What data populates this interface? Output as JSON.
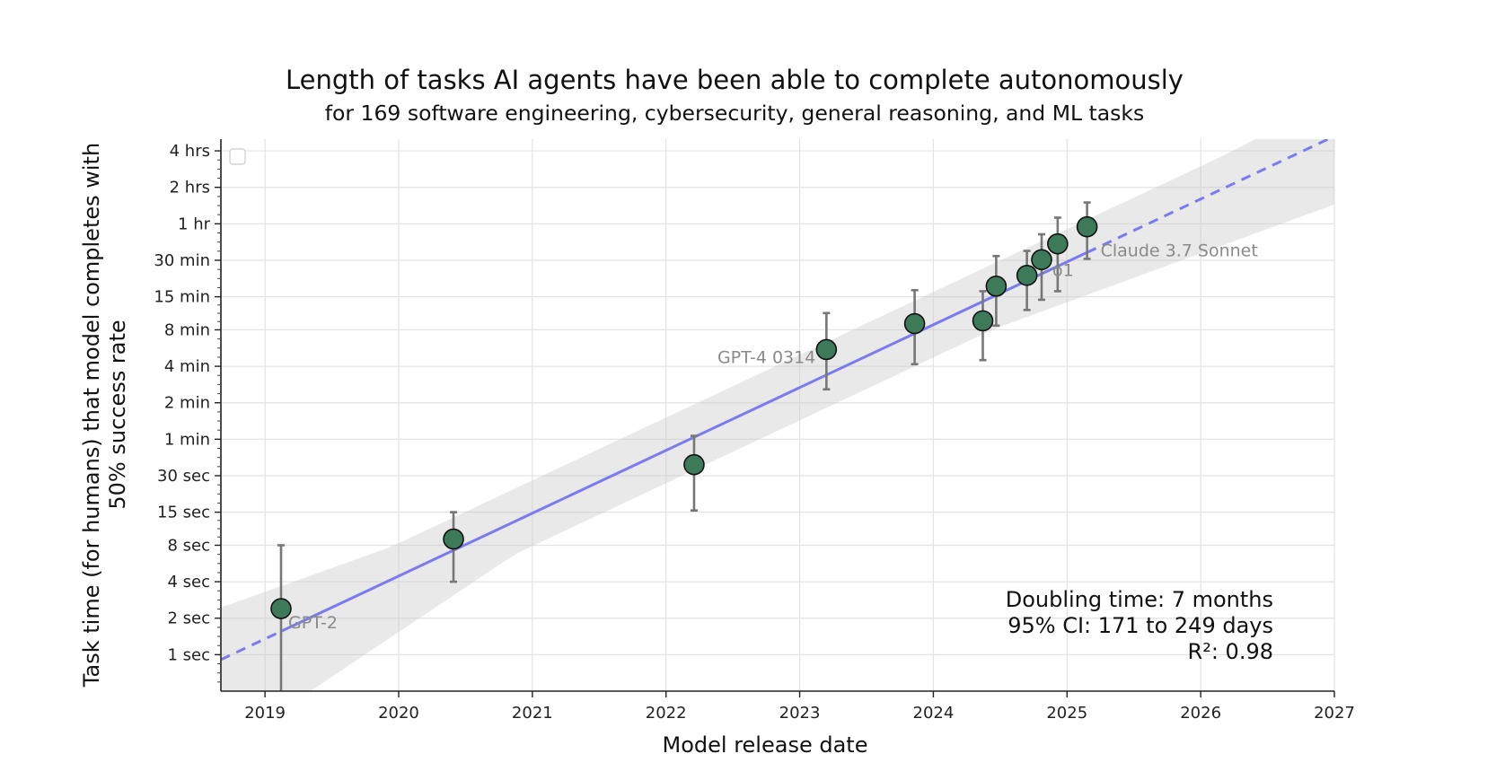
{
  "chart_data": {
    "type": "scatter",
    "title": "Length of tasks AI agents have been able to complete autonomously",
    "subtitle": "for 169 software engineering, cybersecurity, general reasoning, and ML tasks",
    "xlabel": "Model release date",
    "ylabel_line1": "Task time (for humans) that model completes with",
    "ylabel_line2": "50% success rate",
    "xlim": [
      2018.67,
      2027.0
    ],
    "ylim_seconds": [
      0.5,
      18000
    ],
    "y_scale": "log",
    "grid": true,
    "x_ticks": [
      {
        "value": 2019,
        "label": "2019"
      },
      {
        "value": 2020,
        "label": "2020"
      },
      {
        "value": 2021,
        "label": "2021"
      },
      {
        "value": 2022,
        "label": "2022"
      },
      {
        "value": 2023,
        "label": "2023"
      },
      {
        "value": 2024,
        "label": "2024"
      },
      {
        "value": 2025,
        "label": "2025"
      },
      {
        "value": 2026,
        "label": "2026"
      },
      {
        "value": 2027,
        "label": "2027"
      }
    ],
    "y_ticks": [
      {
        "seconds": 1,
        "label": "1 sec"
      },
      {
        "seconds": 2,
        "label": "2 sec"
      },
      {
        "seconds": 4,
        "label": "4 sec"
      },
      {
        "seconds": 8,
        "label": "8 sec"
      },
      {
        "seconds": 15,
        "label": "15 sec"
      },
      {
        "seconds": 30,
        "label": "30 sec"
      },
      {
        "seconds": 60,
        "label": "1 min"
      },
      {
        "seconds": 120,
        "label": "2 min"
      },
      {
        "seconds": 240,
        "label": "4 min"
      },
      {
        "seconds": 480,
        "label": "8 min"
      },
      {
        "seconds": 900,
        "label": "15 min"
      },
      {
        "seconds": 1800,
        "label": "30 min"
      },
      {
        "seconds": 3600,
        "label": "1 hr"
      },
      {
        "seconds": 7200,
        "label": "2 hrs"
      },
      {
        "seconds": 14400,
        "label": "4 hrs"
      }
    ],
    "points": [
      {
        "x": 2019.12,
        "y": 2.4,
        "err_low": 0.5,
        "err_high": 8,
        "label": "GPT-2"
      },
      {
        "x": 2020.41,
        "y": 9,
        "err_low": 4,
        "err_high": 15,
        "label": ""
      },
      {
        "x": 2022.21,
        "y": 37,
        "err_low": 15.5,
        "err_high": 64,
        "label": ""
      },
      {
        "x": 2023.2,
        "y": 330,
        "err_low": 155,
        "err_high": 660,
        "label": "GPT-4 0314"
      },
      {
        "x": 2023.86,
        "y": 540,
        "err_low": 250,
        "err_high": 1020,
        "label": ""
      },
      {
        "x": 2024.37,
        "y": 570,
        "err_low": 270,
        "err_high": 1000,
        "label": ""
      },
      {
        "x": 2024.47,
        "y": 1100,
        "err_low": 520,
        "err_high": 1950,
        "label": ""
      },
      {
        "x": 2024.7,
        "y": 1350,
        "err_low": 700,
        "err_high": 2150,
        "label": ""
      },
      {
        "x": 2024.81,
        "y": 1820,
        "err_low": 850,
        "err_high": 2950,
        "label": "o1"
      },
      {
        "x": 2024.93,
        "y": 2460,
        "err_low": 1000,
        "err_high": 4050,
        "label": ""
      },
      {
        "x": 2025.15,
        "y": 3400,
        "err_low": 1850,
        "err_high": 5400,
        "label": "Claude 3.7 Sonnet"
      }
    ],
    "trend": {
      "x0": 2018.67,
      "y0": 0.91,
      "doubling_days": 212,
      "solid_from": 2019.12,
      "solid_to": 2025.15
    },
    "ci_band": {
      "left": {
        "x": 2018.67,
        "low": 0.16,
        "high": 2.45
      },
      "center_x": 2022.1,
      "right": {
        "x": 2027.0,
        "low": 5200,
        "high": 40000
      }
    },
    "annotations": [
      "Doubling time: 7 months",
      "95% CI: 171 to 249 days",
      "R²: 0.98"
    ],
    "colors": {
      "point_fill": "#3d7a5a",
      "trend_line": "#7b7bef",
      "error_bar": "#777777",
      "ci_band": "#c8c8c8"
    }
  }
}
